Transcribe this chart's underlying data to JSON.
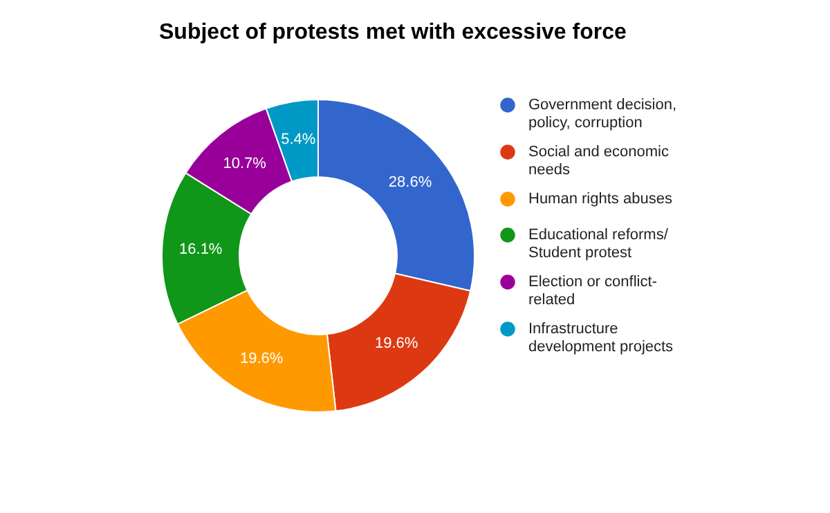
{
  "chart_data": {
    "type": "donut",
    "title": "Subject of protests met with excessive force",
    "categories": [
      "Government decision, policy, corruption",
      "Social and economic needs",
      "Human rights abuses",
      "Educational reforms/Student protest",
      "Election or conflict-related",
      "Infrastructure development projects"
    ],
    "values": [
      28.6,
      19.6,
      19.6,
      16.1,
      10.7,
      5.4
    ],
    "colors": [
      "#3366cc",
      "#dc3912",
      "#ff9900",
      "#109618",
      "#990099",
      "#0099c6"
    ],
    "value_labels": [
      "28.6%",
      "19.6%",
      "19.6%",
      "16.1%",
      "10.7%",
      "5.4%"
    ],
    "legend": "right"
  }
}
